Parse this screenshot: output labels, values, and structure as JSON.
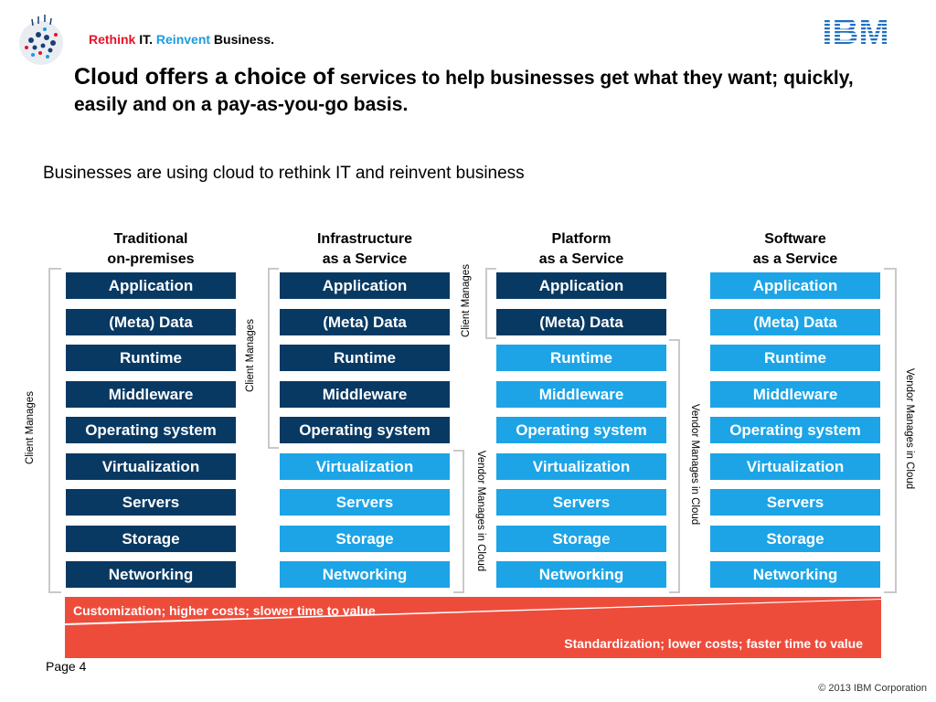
{
  "header": {
    "tagline": [
      {
        "text": "Rethink",
        "color": "red"
      },
      {
        "text": " IT.  ",
        "color": "black"
      },
      {
        "text": "Reinvent",
        "color": "blue"
      },
      {
        "text": " Business.",
        "color": "black"
      }
    ],
    "logo": "IBM",
    "headline_lead": "Cloud offers a choice of",
    "headline_rest": " services to help businesses get what they want; quickly, easily and on a pay-as-you-go basis."
  },
  "subtitle": "Businesses are using cloud to rethink IT and reinvent business",
  "columns": [
    {
      "title1": "Traditional",
      "title2": "on-premises",
      "client_rows": 9
    },
    {
      "title1": "Infrastructure",
      "title2": "as a Service",
      "client_rows": 5
    },
    {
      "title1": "Platform",
      "title2": "as a Service",
      "client_rows": 2
    },
    {
      "title1": "Software",
      "title2": "as a Service",
      "client_rows": 0
    }
  ],
  "layers": [
    "Application",
    "(Meta) Data",
    "Runtime",
    "Middleware",
    "Operating system",
    "Virtualization",
    "Servers",
    "Storage",
    "Networking"
  ],
  "labels": {
    "client_manages": "Client Manages",
    "vendor_manages": "Vendor Manages in Cloud"
  },
  "banner": {
    "top_text": "Customization; higher costs; slower time to value",
    "bottom_text": "Standardization; lower costs; faster time to value"
  },
  "footer": {
    "page": "Page 4",
    "copyright": "© 2013 IBM Corporation"
  },
  "colors": {
    "client_box": "#083963",
    "vendor_box": "#1ca4e7",
    "banner": "#ee4c3b",
    "bracket": "#c9c9c9"
  }
}
